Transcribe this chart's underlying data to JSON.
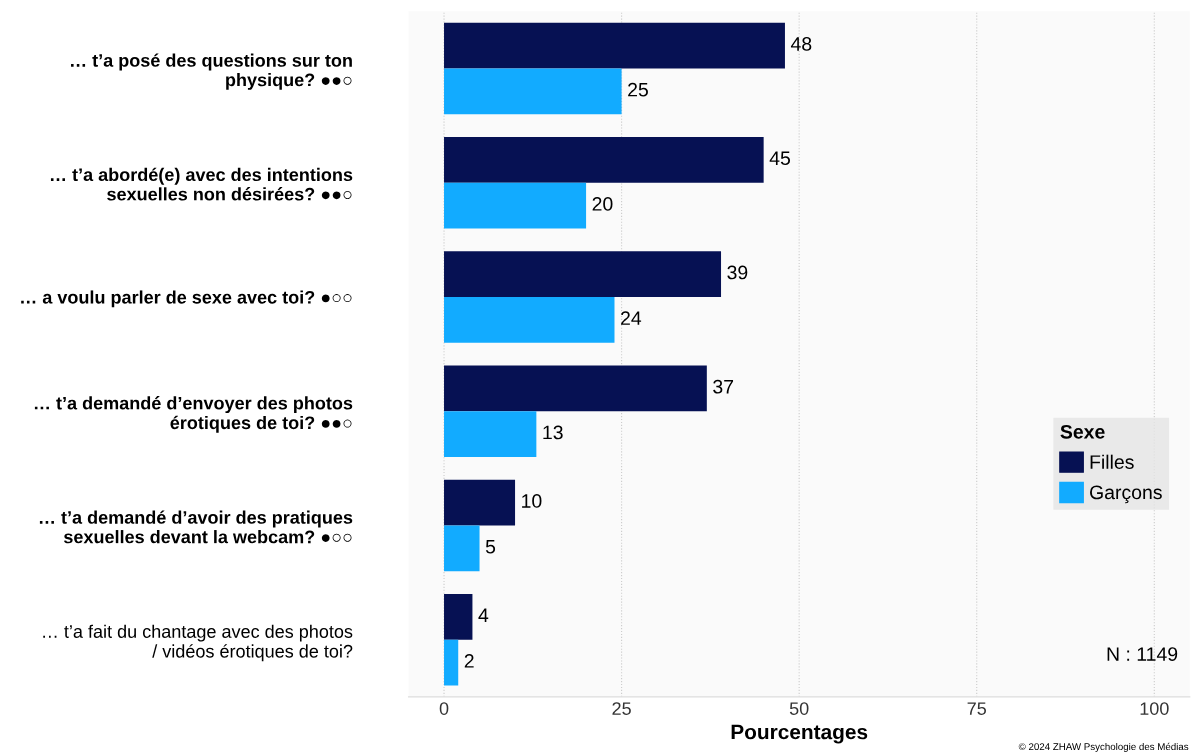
{
  "chart_data": {
    "type": "bar",
    "orientation": "horizontal",
    "xlabel": "Pourcentages",
    "legend_title": "Sexe",
    "legend": "right",
    "categories": [
      "… t’a posé des questions sur ton physique? ●●○",
      "… t’a abordé(e) avec des intentions sexuelles non désirées? ●●○",
      "… a voulu parler de sexe avec toi? ●○○",
      "… t’a demandé d’envoyer des photos érotiques de toi? ●●○",
      "… t’a demandé d’avoir des pratiques sexuelles devant la webcam? ●○○",
      "… t’a fait du chantage avec des photos / vidéos érotiques de toi?"
    ],
    "series": [
      {
        "name": "Filles",
        "color": "#061153",
        "values": [
          48,
          45,
          39,
          37,
          10,
          4
        ]
      },
      {
        "name": "Garçons",
        "color": "#12abff",
        "values": [
          25,
          20,
          24,
          13,
          5,
          2
        ]
      }
    ],
    "data_labels": true,
    "xlim": [
      -5,
      105
    ],
    "xticks": [
      0,
      25,
      50,
      75,
      100
    ],
    "grid": "x",
    "annotations": [
      "N : 1149",
      "© 2024 ZHAW Psychologie des Médias"
    ]
  }
}
